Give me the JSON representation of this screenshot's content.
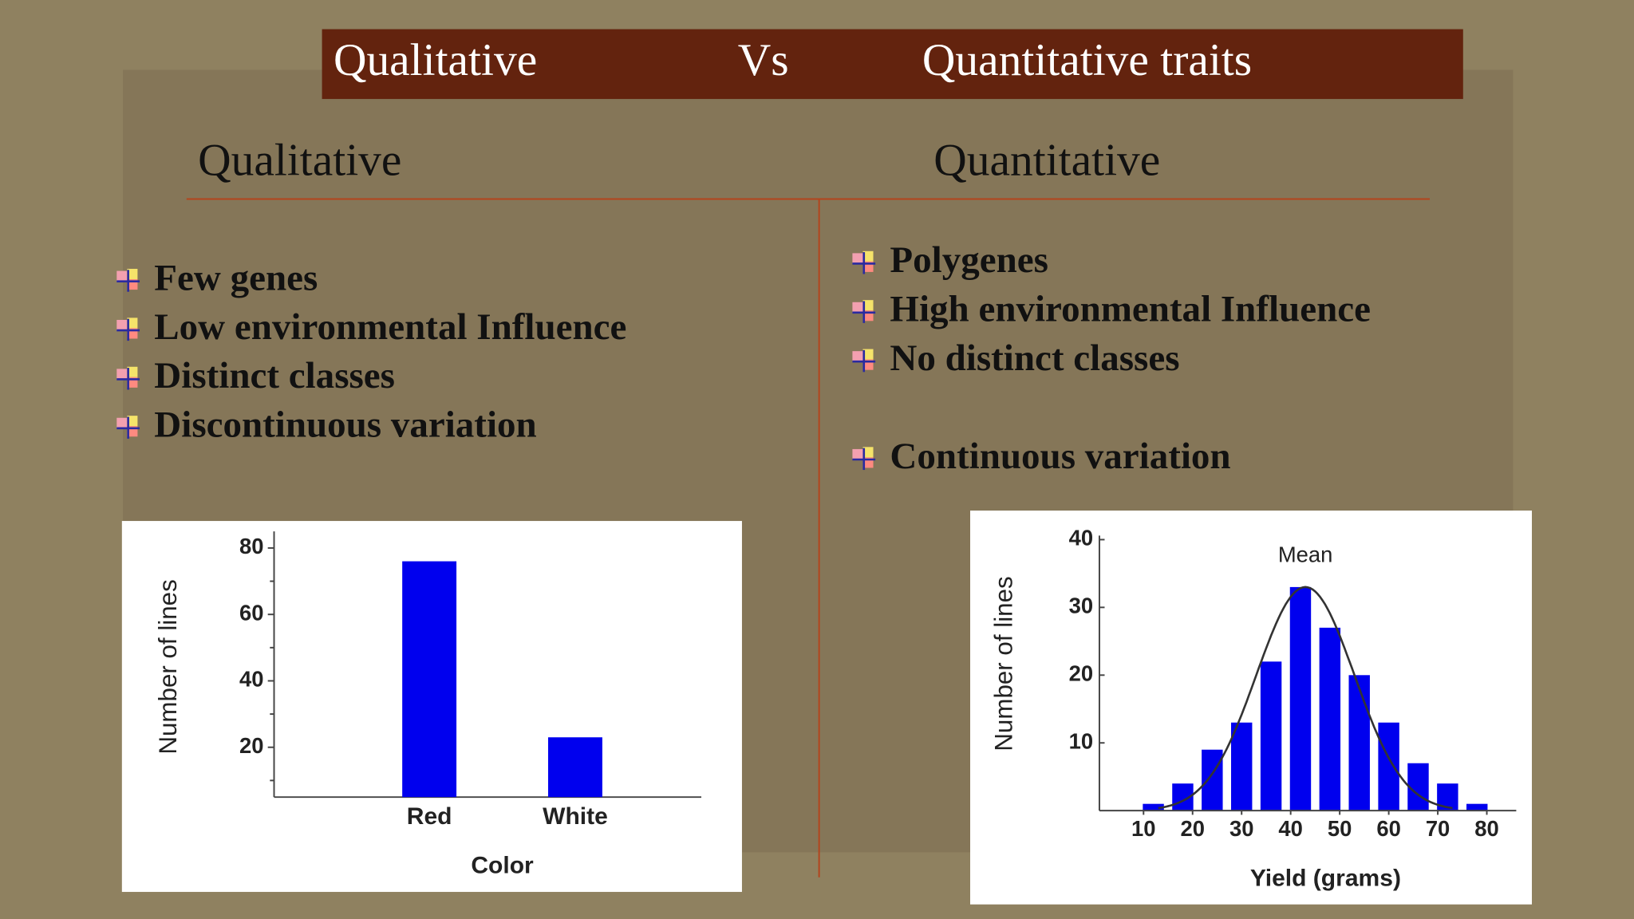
{
  "title": [
    "Qualitative",
    "Vs",
    "Quantitative traits"
  ],
  "columns": [
    {
      "heading": "Qualitative",
      "bullets": [
        "Few genes",
        "Low environmental Influence",
        "Distinct classes",
        "Discontinuous variation"
      ]
    },
    {
      "heading": "Quantitative",
      "bullets": [
        "Polygenes",
        "High environmental Influence",
        "No distinct classes",
        "Continuous variation"
      ]
    }
  ],
  "chart_data": [
    {
      "type": "bar",
      "categories": [
        "Red",
        "White"
      ],
      "values": [
        76,
        23
      ],
      "color": "#0000ee",
      "ylim": [
        5,
        85
      ],
      "yticks": [
        20,
        40,
        60,
        80
      ],
      "yticks_minor": [
        10,
        30,
        50,
        70
      ],
      "xlabel": "Color",
      "ylabel": "Number of lines"
    },
    {
      "type": "histogram",
      "bins": [
        9,
        15,
        21,
        27,
        33,
        39,
        45,
        51,
        57,
        63,
        69,
        75,
        81
      ],
      "values": [
        1,
        4,
        9,
        13,
        22,
        33,
        27,
        20,
        13,
        7,
        4,
        1
      ],
      "color": "#0000ee",
      "xlim": [
        1,
        86
      ],
      "ylim": [
        0,
        40.6
      ],
      "xticks": [
        10,
        20,
        30,
        40,
        50,
        60,
        70,
        80
      ],
      "yticks": [
        10,
        20,
        30,
        40
      ],
      "curve": {
        "mean": 43,
        "sd": 10,
        "peak": 33
      },
      "annotation": "Mean",
      "xlabel": "Yield (grams)",
      "ylabel": "Number of lines"
    }
  ]
}
